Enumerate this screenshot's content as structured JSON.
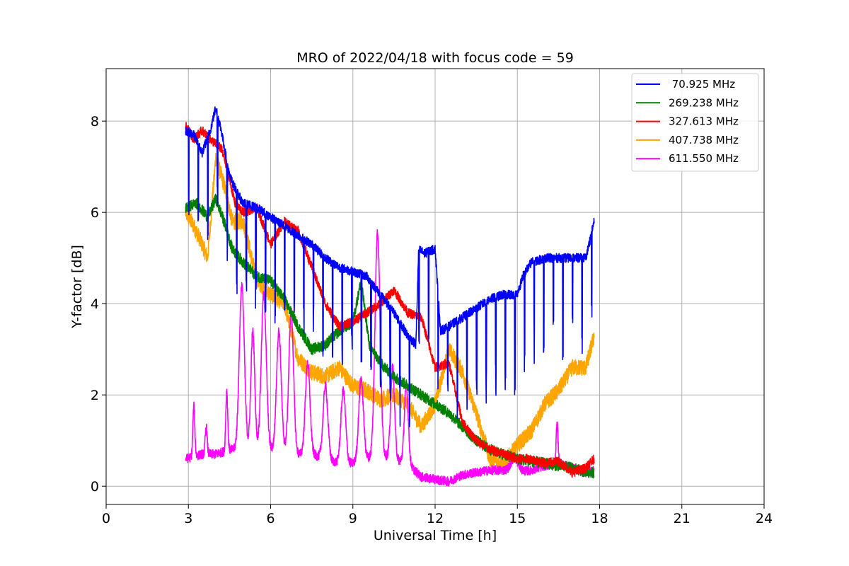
{
  "chart_data": {
    "type": "line",
    "title": "MRO of 2022/04/18 with focus code = 59",
    "xlabel": "Universal Time [h]",
    "ylabel": "Y-factor [dB]",
    "xlim": [
      0,
      24
    ],
    "ylim": [
      -0.4,
      9.15
    ],
    "xticks": [
      0,
      3,
      6,
      9,
      12,
      15,
      18,
      21,
      24
    ],
    "yticks": [
      0,
      2,
      4,
      6,
      8
    ],
    "grid": true,
    "legend_position": "top-right",
    "series": [
      {
        "name": "70.925 MHz",
        "legend_label": " 70.925 MHz",
        "color": "#0000ff",
        "noise": 0.1,
        "spike": {
          "depth": 2.2,
          "start": 3.0,
          "period": 0.35
        },
        "x": [
          2.9,
          3.2,
          3.5,
          3.8,
          4.0,
          4.2,
          4.5,
          4.8,
          5.0,
          5.5,
          6.0,
          6.5,
          7.0,
          7.5,
          8.0,
          8.5,
          9.0,
          9.5,
          10.0,
          10.5,
          11.0,
          11.3,
          11.4,
          11.6,
          12.0,
          12.2,
          12.5,
          13.0,
          13.5,
          14.0,
          14.5,
          15.0,
          15.2,
          15.5,
          16.0,
          16.5,
          17.0,
          17.5,
          17.8
        ],
        "y": [
          7.8,
          7.7,
          7.3,
          7.8,
          8.3,
          7.8,
          6.8,
          6.4,
          6.2,
          6.1,
          5.9,
          5.7,
          5.5,
          5.3,
          5.0,
          4.8,
          4.7,
          4.6,
          4.2,
          3.8,
          3.3,
          3.1,
          5.2,
          5.1,
          5.2,
          3.4,
          3.5,
          3.7,
          3.9,
          4.1,
          4.2,
          4.2,
          4.6,
          4.9,
          5.0,
          5.0,
          5.0,
          5.0,
          5.8
        ]
      },
      {
        "name": "269.238 MHz",
        "legend_label": "269.238 MHz",
        "color": "#008000",
        "noise": 0.12,
        "x": [
          2.9,
          3.3,
          3.7,
          4.0,
          4.3,
          4.6,
          5.0,
          5.5,
          6.0,
          6.5,
          7.0,
          7.5,
          8.0,
          8.5,
          9.0,
          9.3,
          9.6,
          10.0,
          10.5,
          11.0,
          11.5,
          12.0,
          12.5,
          13.0,
          13.5,
          14.0,
          14.5,
          15.0,
          15.5,
          16.0,
          16.5,
          17.0,
          17.5,
          17.8
        ],
        "y": [
          6.1,
          6.2,
          5.9,
          6.3,
          5.8,
          5.2,
          4.9,
          4.6,
          4.5,
          4.1,
          3.5,
          3.0,
          3.1,
          3.4,
          3.6,
          4.5,
          3.1,
          2.7,
          2.4,
          2.2,
          2.0,
          1.8,
          1.6,
          1.3,
          1.0,
          0.8,
          0.7,
          0.6,
          0.55,
          0.5,
          0.45,
          0.4,
          0.3,
          0.3
        ]
      },
      {
        "name": "327.613 MHz",
        "legend_label": "327.613 MHz",
        "color": "#ff0000",
        "noise": 0.1,
        "x": [
          2.9,
          3.2,
          3.5,
          3.8,
          4.0,
          4.2,
          4.4,
          4.7,
          5.0,
          5.5,
          6.0,
          6.5,
          7.0,
          7.5,
          8.0,
          8.5,
          9.0,
          9.5,
          10.0,
          10.5,
          11.0,
          11.5,
          12.0,
          12.5,
          13.0,
          13.5,
          14.0,
          14.5,
          15.0,
          15.5,
          16.0,
          16.5,
          17.0,
          17.5,
          17.8
        ],
        "y": [
          7.9,
          7.6,
          7.8,
          7.6,
          7.5,
          7.4,
          7.0,
          6.2,
          6.0,
          6.1,
          5.3,
          5.8,
          5.6,
          4.8,
          4.0,
          3.5,
          3.6,
          3.8,
          4.0,
          4.3,
          3.8,
          3.7,
          2.6,
          2.7,
          1.4,
          1.0,
          0.8,
          0.7,
          0.6,
          0.6,
          0.5,
          0.55,
          0.3,
          0.4,
          0.6
        ]
      },
      {
        "name": "407.738 MHz",
        "legend_label": "407.738 MHz",
        "color": "#ffa500",
        "noise": 0.18,
        "x": [
          2.9,
          3.2,
          3.5,
          3.7,
          4.0,
          4.3,
          4.6,
          5.0,
          5.5,
          6.0,
          6.5,
          7.0,
          7.5,
          8.0,
          8.5,
          9.0,
          9.5,
          10.0,
          10.5,
          11.0,
          11.5,
          12.0,
          12.5,
          13.0,
          13.5,
          14.0,
          14.5,
          15.0,
          15.5,
          16.0,
          16.5,
          17.0,
          17.5,
          17.8
        ],
        "y": [
          6.0,
          5.7,
          5.3,
          5.0,
          7.2,
          6.6,
          5.8,
          5.8,
          4.5,
          4.2,
          4.0,
          2.8,
          2.5,
          2.4,
          2.6,
          2.2,
          2.1,
          1.9,
          2.0,
          1.8,
          1.3,
          1.8,
          3.0,
          2.5,
          1.6,
          0.6,
          0.5,
          0.9,
          1.2,
          1.8,
          2.1,
          2.6,
          2.6,
          3.3
        ]
      },
      {
        "name": "611.550 MHz",
        "legend_label": "611.550 MHz",
        "color": "#ff00ff",
        "noise": 0.1,
        "bursts": [
          {
            "x": 3.2,
            "h": 1.1,
            "w": 0.05
          },
          {
            "x": 3.65,
            "h": 0.6,
            "w": 0.05
          },
          {
            "x": 4.4,
            "h": 1.3,
            "w": 0.05
          },
          {
            "x": 4.95,
            "h": 3.6,
            "w": 0.13
          },
          {
            "x": 5.35,
            "h": 2.6,
            "w": 0.1
          },
          {
            "x": 5.75,
            "h": 3.4,
            "w": 0.13
          },
          {
            "x": 6.3,
            "h": 2.6,
            "w": 0.12
          },
          {
            "x": 6.75,
            "h": 3.1,
            "w": 0.12
          },
          {
            "x": 7.35,
            "h": 2.0,
            "w": 0.12
          },
          {
            "x": 8.0,
            "h": 1.6,
            "w": 0.12
          },
          {
            "x": 8.65,
            "h": 1.6,
            "w": 0.12
          },
          {
            "x": 9.3,
            "h": 1.8,
            "w": 0.12
          },
          {
            "x": 9.9,
            "h": 4.9,
            "w": 0.13
          },
          {
            "x": 10.45,
            "h": 2.0,
            "w": 0.1
          },
          {
            "x": 10.95,
            "h": 1.7,
            "w": 0.1
          },
          {
            "x": 14.9,
            "h": 0.3,
            "w": 0.2
          },
          {
            "x": 16.45,
            "h": 0.9,
            "w": 0.05
          }
        ],
        "x": [
          2.9,
          3.5,
          4.0,
          4.5,
          5.0,
          5.5,
          6.0,
          6.5,
          7.0,
          7.5,
          8.0,
          8.5,
          9.0,
          9.5,
          10.0,
          10.5,
          11.0,
          11.5,
          12.0,
          12.5,
          13.0,
          13.5,
          14.0,
          14.5,
          15.0,
          15.5,
          16.0,
          16.5,
          17.0,
          17.5,
          17.8
        ],
        "y": [
          0.6,
          0.7,
          0.7,
          0.8,
          0.8,
          0.8,
          0.8,
          0.8,
          0.7,
          0.7,
          0.6,
          0.5,
          0.5,
          0.6,
          0.7,
          0.6,
          0.5,
          0.2,
          0.15,
          0.1,
          0.25,
          0.3,
          0.35,
          0.35,
          0.3,
          0.35,
          0.45,
          0.5,
          0.4,
          0.3,
          0.35
        ]
      }
    ]
  }
}
